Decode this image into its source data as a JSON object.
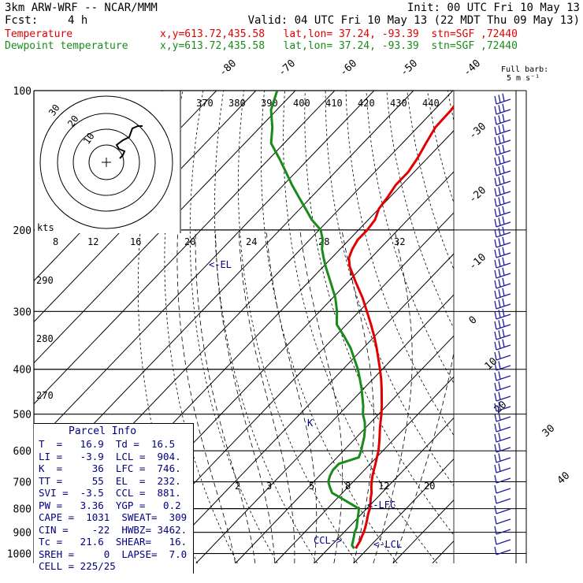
{
  "header": {
    "model": "3km ARW-WRF -- NCAR/MMM",
    "init": "Init: 00 UTC Fri 10 May 13",
    "fcst_label": "Fcst:",
    "fcst_value": "4 h",
    "valid": "Valid: 04 UTC Fri 10 May 13 (22 MDT Thu 09 May 13)",
    "temp_label": "Temperature",
    "temp_info": "x,y=613.72,435.58   lat,lon= 37.24, -93.39  stn=SGF ,72440",
    "dew_label": "Dewpoint temperature",
    "dew_info": "x,y=613.72,435.58   lat,lon= 37.24, -93.39  stn=SGF ,72440",
    "full_barb": "Full barb:",
    "full_barb_val": "5 m s⁻¹"
  },
  "parcel_info": {
    "title": "Parcel Info",
    "rows": [
      "T  =   16.9  Td =  16.5",
      "LI =   -3.9  LCL =  904.",
      "K  =     36  LFC =  746.",
      "TT =     55  EL  =  232.",
      "SVI =  -3.5  CCL =  881.",
      "PW =   3.36  YGP =   0.2",
      "CAPE =  1031  SWEAT=  309",
      "CIN =    -22  HWBZ= 3462.",
      "Tc =   21.6  SHEAR=   16.",
      "SREH =     0  LAPSE=  7.0",
      "CELL = 225/25"
    ]
  },
  "annotations": {
    "el": "<-EL",
    "lfc": "<-LFC",
    "lcl": "<-LCL",
    "ccl": "CCL->",
    "k_marker": "K"
  },
  "hodograph": {
    "units": "kts",
    "speed_labels": [
      "8",
      "12",
      "16",
      "20",
      "24",
      "28",
      "32"
    ],
    "ring_labels": [
      "30",
      "20",
      "10"
    ]
  },
  "chart_data": {
    "type": "line",
    "chart_kind": "skew-T log-P",
    "pressure_levels": [
      100,
      200,
      300,
      400,
      500,
      600,
      700,
      800,
      900,
      1000
    ],
    "pressure_label_text": [
      "100",
      "200",
      "300",
      "400",
      "500",
      "600",
      "700",
      "800",
      "900",
      "1000"
    ],
    "isotherm_labels": [
      "-80",
      "-70",
      "-60",
      "-50",
      "-40",
      "-30",
      "-20",
      "-10",
      "0",
      "10",
      "20",
      "30",
      "40"
    ],
    "theta_labels": [
      "370",
      "380",
      "390",
      "400",
      "410",
      "420",
      "430",
      "440"
    ],
    "theta_side_labels": [
      "290",
      "280",
      "270"
    ],
    "mixing_ratio_labels": [
      "2",
      "3",
      "5",
      "8",
      "12",
      "20"
    ],
    "series": [
      {
        "name": "Temperature",
        "color": "#e00000",
        "p": [
          975,
          960,
          940,
          920,
          900,
          880,
          850,
          820,
          800,
          780,
          760,
          740,
          720,
          700,
          680,
          660,
          640,
          620,
          600,
          580,
          560,
          540,
          520,
          500,
          480,
          460,
          440,
          420,
          400,
          380,
          360,
          340,
          320,
          300,
          280,
          260,
          240,
          230,
          220,
          210,
          200,
          190,
          180,
          170,
          160,
          150,
          140,
          130,
          120,
          110,
          100
        ],
        "t": [
          16.9,
          16.6,
          16.2,
          15.6,
          15.0,
          14.3,
          13.0,
          11.6,
          10.8,
          9.7,
          8.5,
          7.4,
          6.0,
          4.7,
          3.5,
          2.4,
          1.3,
          0.1,
          -1.1,
          -2.6,
          -4.2,
          -5.9,
          -7.6,
          -9.3,
          -11.2,
          -13.3,
          -15.5,
          -17.9,
          -20.6,
          -23.5,
          -26.6,
          -30.0,
          -33.8,
          -38.0,
          -42.5,
          -47.8,
          -53.3,
          -55.6,
          -56.9,
          -57.8,
          -57.8,
          -58.3,
          -60.0,
          -60.6,
          -61.5,
          -61.5,
          -62.5,
          -64.0,
          -65.5,
          -65.7,
          -66.8
        ]
      },
      {
        "name": "Dewpoint temperature",
        "color": "#1a8a1a",
        "p": [
          975,
          960,
          940,
          920,
          900,
          880,
          850,
          820,
          800,
          780,
          760,
          740,
          720,
          700,
          680,
          660,
          640,
          620,
          600,
          580,
          560,
          540,
          520,
          500,
          480,
          460,
          440,
          420,
          400,
          380,
          360,
          340,
          320,
          300,
          280,
          260,
          240,
          230,
          220,
          210,
          200,
          190,
          180,
          170,
          160,
          150,
          140,
          130,
          120,
          110,
          100
        ],
        "t": [
          16.5,
          15.2,
          14.4,
          13.6,
          12.7,
          12.1,
          10.6,
          9.1,
          8.0,
          4.6,
          1.1,
          -2.6,
          -4.5,
          -6.3,
          -7.3,
          -8.0,
          -8.0,
          -4.5,
          -5.5,
          -6.8,
          -8.1,
          -9.7,
          -11.6,
          -14.0,
          -15.9,
          -18.2,
          -20.6,
          -23.3,
          -26.2,
          -29.6,
          -33.2,
          -37.6,
          -42.5,
          -45.6,
          -49.4,
          -54.2,
          -59.4,
          -62.0,
          -64.6,
          -66.7,
          -69.6,
          -74.4,
          -78.6,
          -83.1,
          -87.8,
          -92.5,
          -97.6,
          -103.3,
          -106.9,
          -111.5,
          -114.6
        ]
      }
    ],
    "ylim": [
      1000,
      100
    ],
    "yscale": "log",
    "grid": true
  }
}
